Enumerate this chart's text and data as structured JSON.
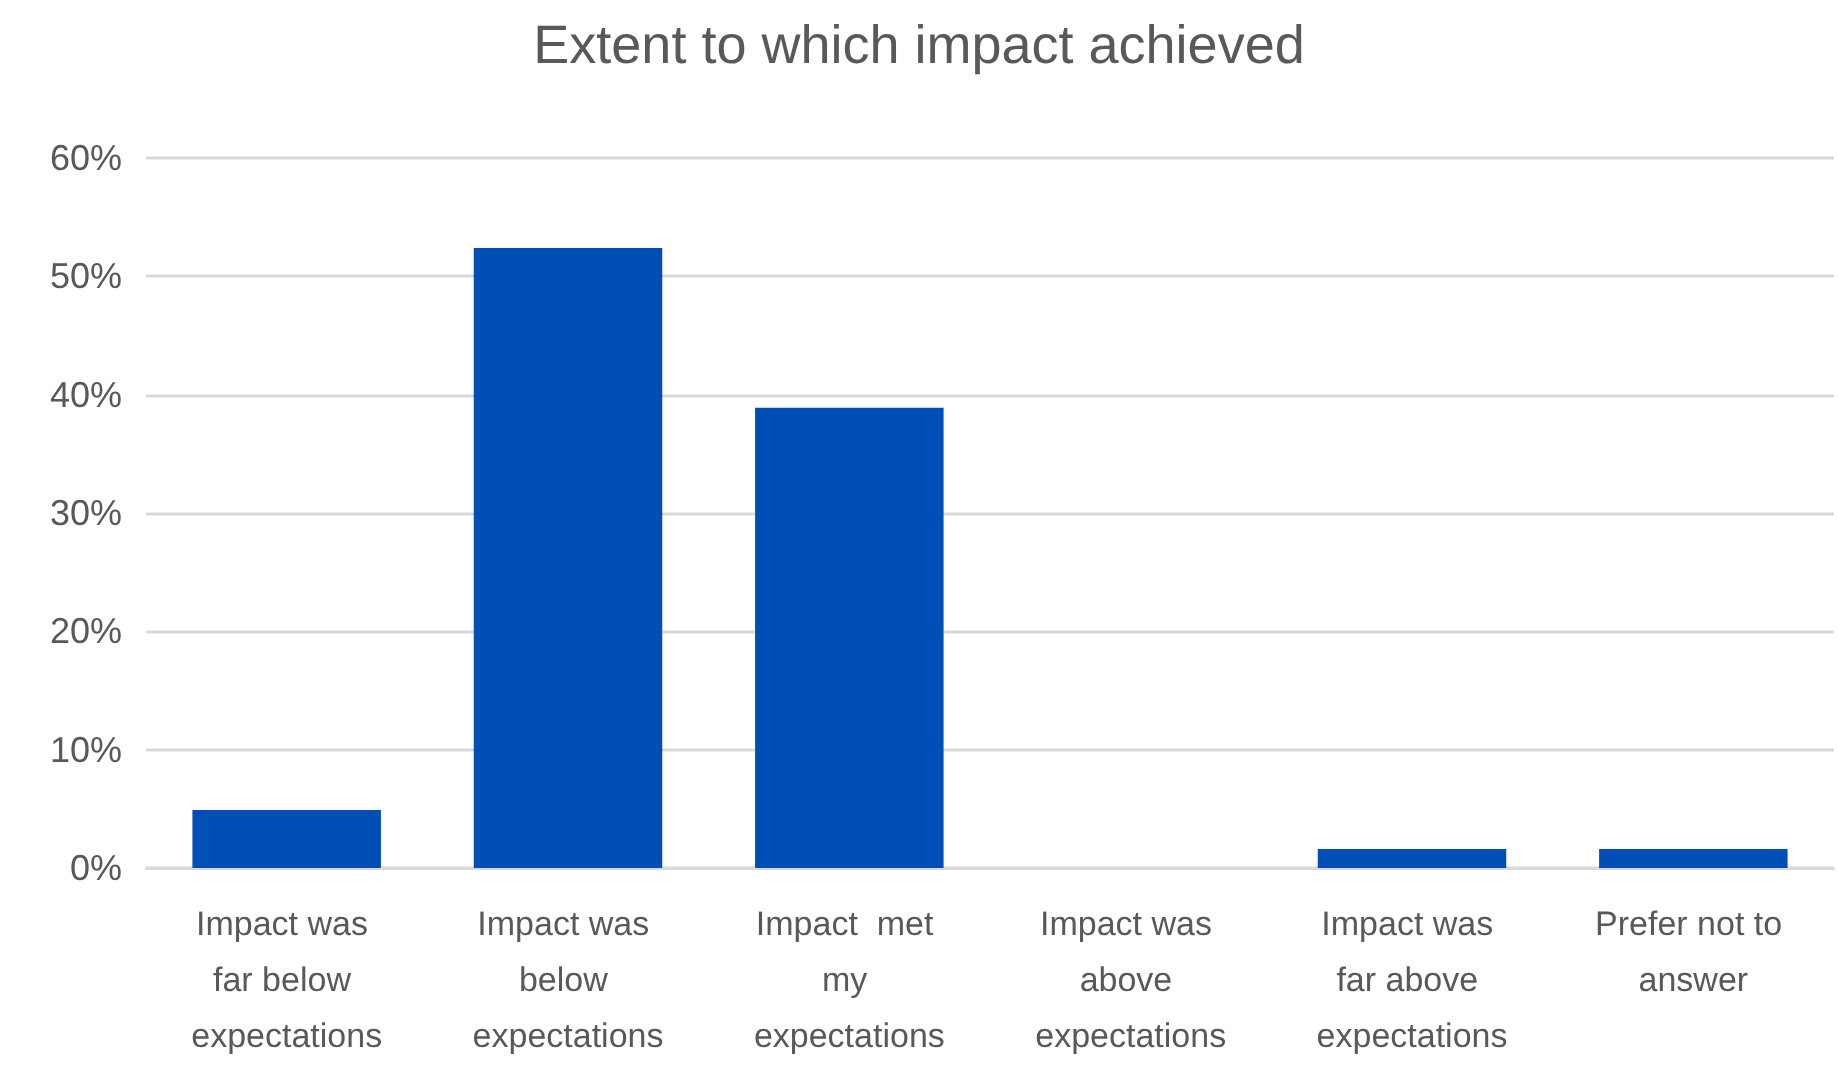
{
  "chart_data": {
    "type": "bar",
    "title": "Extent to which impact achieved",
    "categories": [
      "Impact was far below expectations",
      "Impact was below expectations",
      "Impact  met my expectations",
      "Impact was above expectations",
      "Impact was far above expectations",
      "Prefer not to answer"
    ],
    "values": [
      4.9,
      52.4,
      38.9,
      0,
      1.6,
      1.6
    ],
    "color": "#004fb6",
    "ylim": [
      0,
      60
    ],
    "yticks": [
      {
        "value": 0,
        "label": "0%"
      },
      {
        "value": 10,
        "label": "10%"
      },
      {
        "value": 20,
        "label": "20%"
      },
      {
        "value": 30,
        "label": "30%"
      },
      {
        "value": 40,
        "label": "40%"
      },
      {
        "value": 50,
        "label": "50%"
      },
      {
        "value": 60,
        "label": "60%"
      }
    ],
    "grid": "y"
  }
}
